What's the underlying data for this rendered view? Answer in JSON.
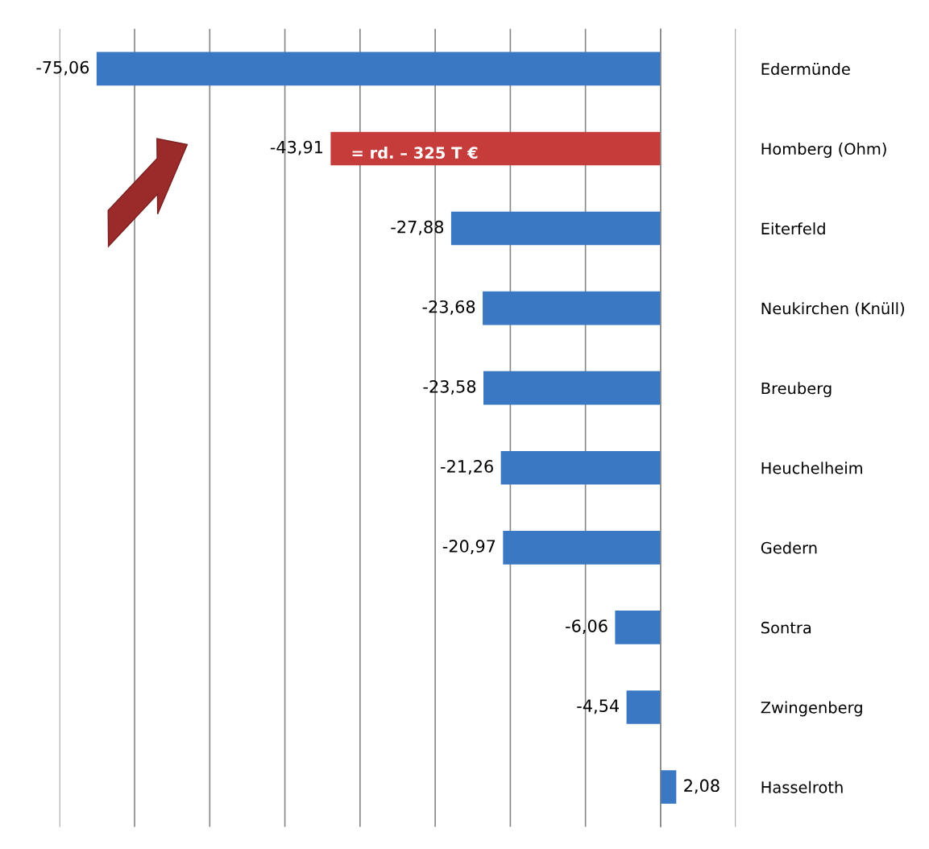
{
  "chart_data": {
    "type": "bar",
    "orientation": "horizontal",
    "categories": [
      "Edermünde",
      "Homberg (Ohm)",
      "Eiterfeld",
      "Neukirchen (Knüll)",
      "Breuberg",
      "Heuchelheim",
      "Gedern",
      "Sontra",
      "Zwingenberg",
      "Hasselroth"
    ],
    "values": [
      -75.06,
      -43.91,
      -27.88,
      -23.68,
      -23.58,
      -21.26,
      -20.97,
      -6.06,
      -4.54,
      2.08
    ],
    "colors": [
      "#3a78c3",
      "#c63c3b",
      "#3a78c3",
      "#3a78c3",
      "#3a78c3",
      "#3a78c3",
      "#3a78c3",
      "#3a78c3",
      "#3a78c3",
      "#3a78c3"
    ],
    "value_labels": [
      "-75,06",
      "-43,91",
      "-27,88",
      "-23,68",
      "-23,58",
      "-21,26",
      "-20,97",
      "-6,06",
      "-4,54",
      "2,08"
    ],
    "xlim": [
      -80,
      10
    ],
    "xticks": [
      {
        "value": -80,
        "label": null
      },
      {
        "value": -70,
        "label": null
      },
      {
        "value": -60,
        "label": null
      },
      {
        "value": -50,
        "label": null
      },
      {
        "value": -40,
        "label": null
      },
      {
        "value": -30,
        "label": null
      },
      {
        "value": -20,
        "label": null
      },
      {
        "value": -10,
        "label": null
      },
      {
        "value": 0,
        "label": null
      },
      {
        "value": 10,
        "label": null
      }
    ],
    "tick_labels": "y",
    "grid": "x",
    "legend": false,
    "annotations": [
      {
        "text": "= rd. – 325 T €",
        "x": -43.91,
        "y": "Homberg (Ohm)"
      }
    ]
  }
}
